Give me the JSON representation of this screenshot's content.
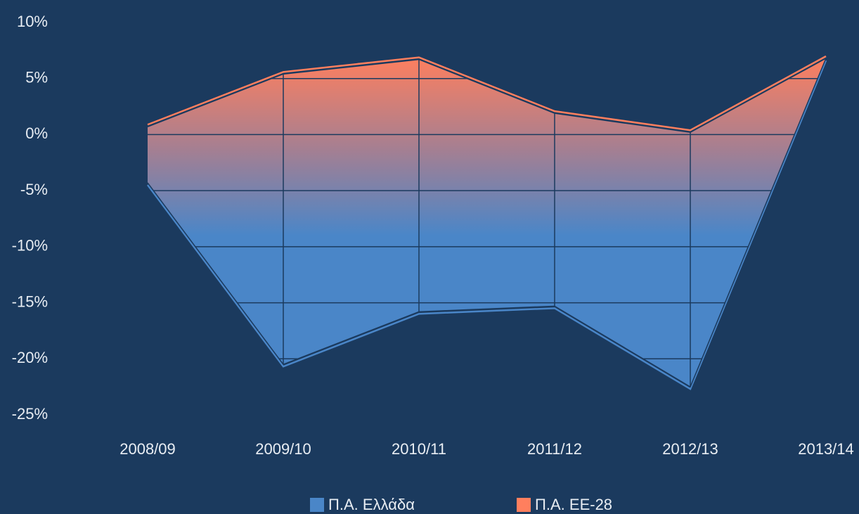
{
  "chart_data": {
    "type": "area-range",
    "categories": [
      "2008/09",
      "2009/10",
      "2010/11",
      "2011/12",
      "2012/13",
      "2013/14"
    ],
    "series": [
      {
        "name": "Π.Α. Ελλάδα",
        "color": "#4a86c8",
        "values": [
          -4.3,
          -20.5,
          -15.8,
          -15.3,
          -22.5,
          6.8
        ]
      },
      {
        "name": "Π.Α. ΕΕ-28",
        "color": "#ff7f5e",
        "values": [
          0.7,
          5.4,
          6.7,
          1.9,
          0.2,
          6.8
        ]
      }
    ],
    "ylim": [
      -25,
      10
    ],
    "yticks": [
      {
        "value": -25,
        "label": "-25%"
      },
      {
        "value": -20,
        "label": "-20%"
      },
      {
        "value": -15,
        "label": "-15%"
      },
      {
        "value": -10,
        "label": "-10%"
      },
      {
        "value": -5,
        "label": "-5%"
      },
      {
        "value": 0,
        "label": "0%"
      },
      {
        "value": 5,
        "label": "5%"
      },
      {
        "value": 10,
        "label": "10%"
      }
    ],
    "grid": true,
    "legend": "bottom"
  }
}
